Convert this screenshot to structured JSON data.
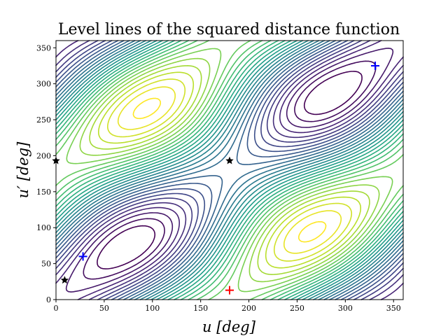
{
  "chart_data": {
    "type": "contour",
    "title": "Level lines of the squared distance function",
    "xlabel": "u [deg]",
    "ylabel": "u′ [deg]",
    "xlim": [
      0,
      360
    ],
    "ylim": [
      0,
      360
    ],
    "xticks": [
      0,
      50,
      100,
      150,
      200,
      250,
      300,
      350
    ],
    "yticks": [
      0,
      50,
      100,
      150,
      200,
      250,
      300,
      350
    ],
    "grid": false,
    "colormap": "viridis",
    "levels": 30,
    "markers": [
      {
        "type": "star",
        "color": "#000000",
        "points": [
          [
            0,
            193
          ],
          [
            9,
            27
          ],
          [
            180,
            193
          ]
        ]
      },
      {
        "type": "plus",
        "color": "#0000ff",
        "points": [
          [
            28,
            60
          ],
          [
            331,
            325
          ]
        ]
      },
      {
        "type": "plus",
        "color": "#ff0000",
        "points": [
          [
            180,
            13
          ]
        ]
      }
    ]
  }
}
